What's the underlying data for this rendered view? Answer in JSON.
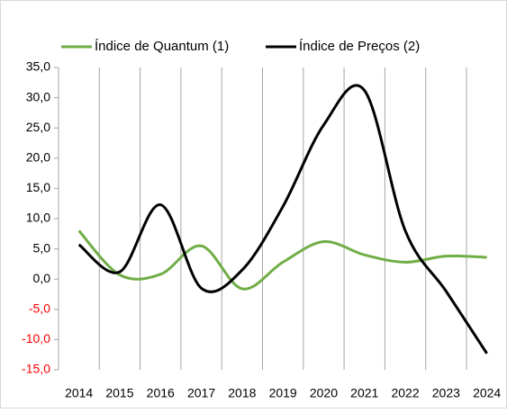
{
  "chart_data": {
    "type": "line",
    "categories": [
      "2014",
      "2015",
      "2016",
      "2017",
      "2018",
      "2019",
      "2020",
      "2021",
      "2022",
      "2023",
      "2024"
    ],
    "series": [
      {
        "name": "Índice de Quantum (1)",
        "color": "#70ad47",
        "values": [
          8.0,
          0.7,
          0.8,
          5.5,
          -1.6,
          2.8,
          6.2,
          4.0,
          2.8,
          3.8,
          3.6
        ]
      },
      {
        "name": "Índice de Preços (2)",
        "color": "#000000",
        "values": [
          5.7,
          1.2,
          12.3,
          -1.5,
          1.5,
          12.0,
          25.5,
          31.2,
          8.0,
          -2.0,
          -12.3
        ]
      }
    ],
    "ylim": [
      -15,
      35
    ],
    "yticks": [
      {
        "value": -15,
        "label": "-15,0"
      },
      {
        "value": -10,
        "label": "-10,0"
      },
      {
        "value": -5,
        "label": "-5,0"
      },
      {
        "value": 0,
        "label": "0,0"
      },
      {
        "value": 5,
        "label": "5,0"
      },
      {
        "value": 10,
        "label": "10,0"
      },
      {
        "value": 15,
        "label": "15,0"
      },
      {
        "value": 20,
        "label": "20,0"
      },
      {
        "value": 25,
        "label": "25,0"
      },
      {
        "value": 30,
        "label": "30,0"
      },
      {
        "value": 35,
        "label": "35,0"
      }
    ],
    "negative_tick_color": "#ff0000",
    "legend": "top"
  }
}
